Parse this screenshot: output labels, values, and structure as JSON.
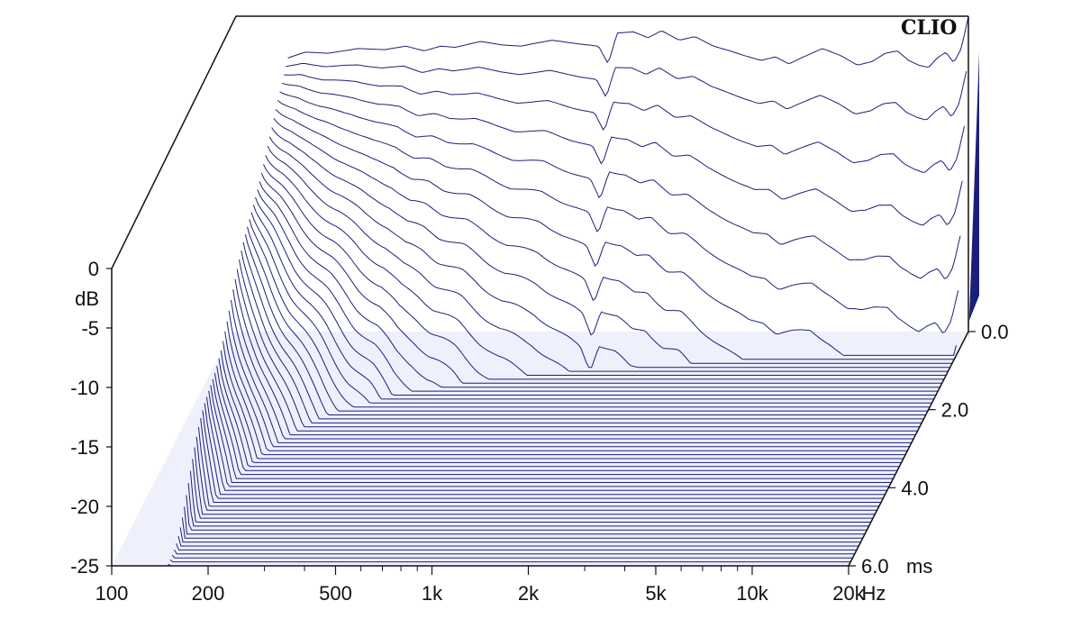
{
  "brand": "CLIO",
  "colors": {
    "trace": "#1c1f7a",
    "frame": "#111111",
    "background": "#ffffff"
  },
  "chart_data": {
    "type": "waterfall",
    "description_of_axes": {
      "x": {
        "unit_label": "Hz",
        "scale": "log",
        "range": [
          100,
          20000
        ],
        "ticks": [
          100,
          200,
          500,
          1000,
          2000,
          5000,
          10000,
          20000
        ],
        "tick_labels": [
          "100",
          "200",
          "500",
          "1k",
          "2k",
          "5k",
          "10k",
          "20k"
        ]
      },
      "y": {
        "unit_label": "dB",
        "range": [
          -25,
          0
        ],
        "ticks": [
          0,
          -5,
          -10,
          -15,
          -20,
          -25
        ],
        "tick_labels": [
          "0",
          "-5",
          "-10",
          "-15",
          "-20",
          "-25"
        ]
      },
      "z": {
        "unit_label": "ms",
        "range": [
          0,
          6
        ],
        "ticks": [
          0,
          2,
          4,
          6
        ],
        "tick_labels": [
          "0.0",
          "2.0",
          "4.0",
          "6.0"
        ]
      }
    },
    "xlabel": "Hz",
    "ylabel": "dB",
    "zlabel": "ms",
    "first_slice_response_db": {
      "freq_hz": [
        150,
        170,
        200,
        250,
        300,
        350,
        400,
        450,
        500,
        600,
        700,
        800,
        1000,
        1200,
        1400,
        1500,
        1600,
        1800,
        2000,
        2200,
        2500,
        2800,
        3200,
        3600,
        4000,
        4500,
        5000,
        5500,
        6000,
        7000,
        8000,
        9000,
        10000,
        11000,
        12000,
        13000,
        14000,
        15000,
        16000,
        17000,
        18000,
        19000,
        20000
      ],
      "db": [
        -2.0,
        -1.5,
        -1.6,
        -1.2,
        -1.3,
        -1.0,
        -1.4,
        -1.0,
        -1.1,
        -0.6,
        -0.9,
        -1.0,
        -0.5,
        -0.8,
        -1.0,
        -2.5,
        0.1,
        0.2,
        -0.3,
        0.3,
        -0.5,
        -0.2,
        -1.0,
        -1.4,
        -1.8,
        -2.2,
        -1.9,
        -2.5,
        -2.0,
        -1.2,
        -1.8,
        -2.6,
        -2.3,
        -1.6,
        -1.4,
        -2.2,
        -2.6,
        -2.8,
        -2.0,
        -1.5,
        -2.4,
        -1.2,
        1.5
      ]
    }
  }
}
